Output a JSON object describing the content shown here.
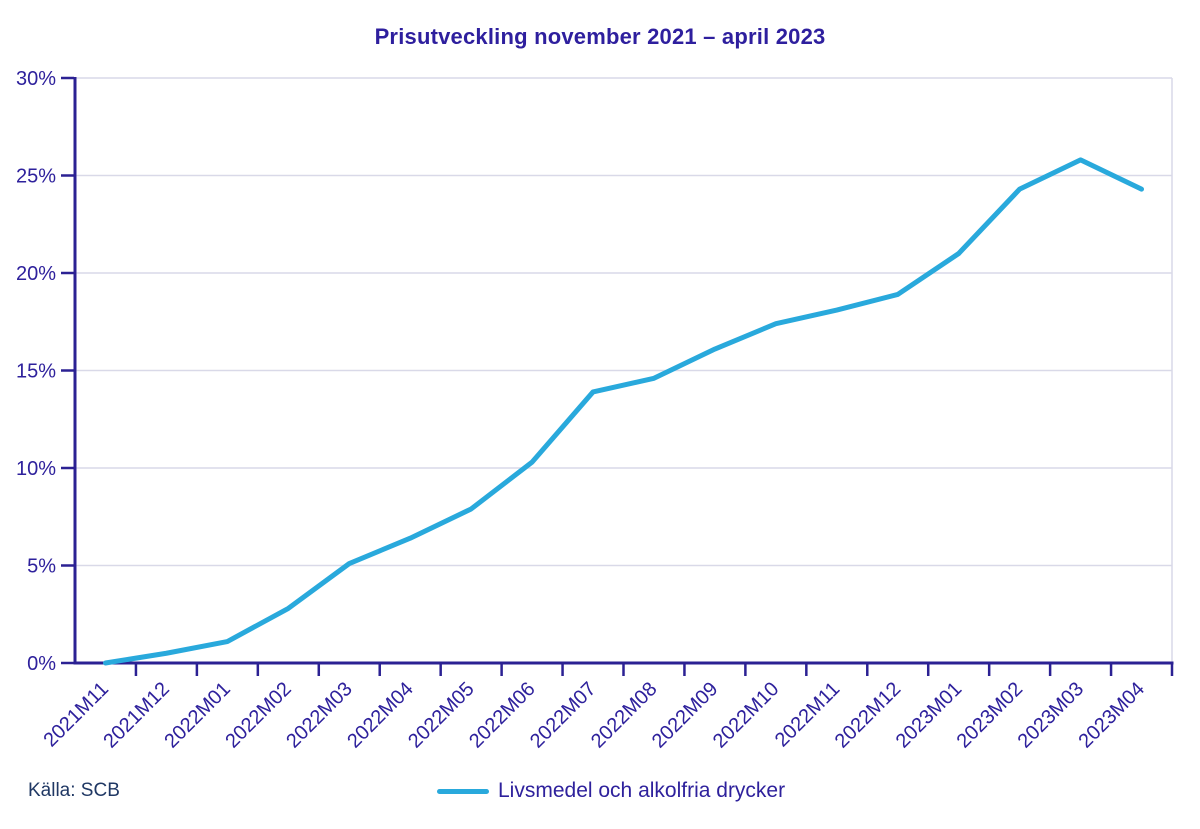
{
  "title": {
    "text": "Prisutveckling november 2021 – april 2023",
    "color": "#2E1F9E"
  },
  "source": {
    "text": "Källa: SCB",
    "color": "#203864"
  },
  "legend": {
    "label": "Livsmedel och alkolfria drycker",
    "swatch_color": "#29A9DC",
    "text_color": "#2E219C"
  },
  "chart_data": {
    "type": "line",
    "title": "Prisutveckling november 2021 – april 2023",
    "categories": [
      "2021M11",
      "2021M12",
      "2022M01",
      "2022M02",
      "2022M03",
      "2022M04",
      "2022M05",
      "2022M06",
      "2022M07",
      "2022M08",
      "2022M09",
      "2022M10",
      "2022M11",
      "2022M12",
      "2023M01",
      "2023M02",
      "2023M03",
      "2023M04"
    ],
    "series": [
      {
        "name": "Livsmedel och alkolfria drycker",
        "color": "#29A9DC",
        "values": [
          0.0,
          0.5,
          1.1,
          2.8,
          5.1,
          6.4,
          7.9,
          10.3,
          13.9,
          14.6,
          16.1,
          17.4,
          18.1,
          18.9,
          21.0,
          24.3,
          25.8,
          24.3
        ]
      }
    ],
    "xlabel": "",
    "ylabel": "",
    "ylim": [
      0,
      30
    ],
    "yticks": [
      0,
      5,
      10,
      15,
      20,
      25,
      30
    ],
    "y_tick_suffix": "%",
    "grid": "horizontal",
    "legend_position": "bottom",
    "axis_color": "#2B2193",
    "grid_color": "#D9D9E8",
    "tick_label_color": "#2E219C",
    "x_tick_label_rotation": -45
  }
}
